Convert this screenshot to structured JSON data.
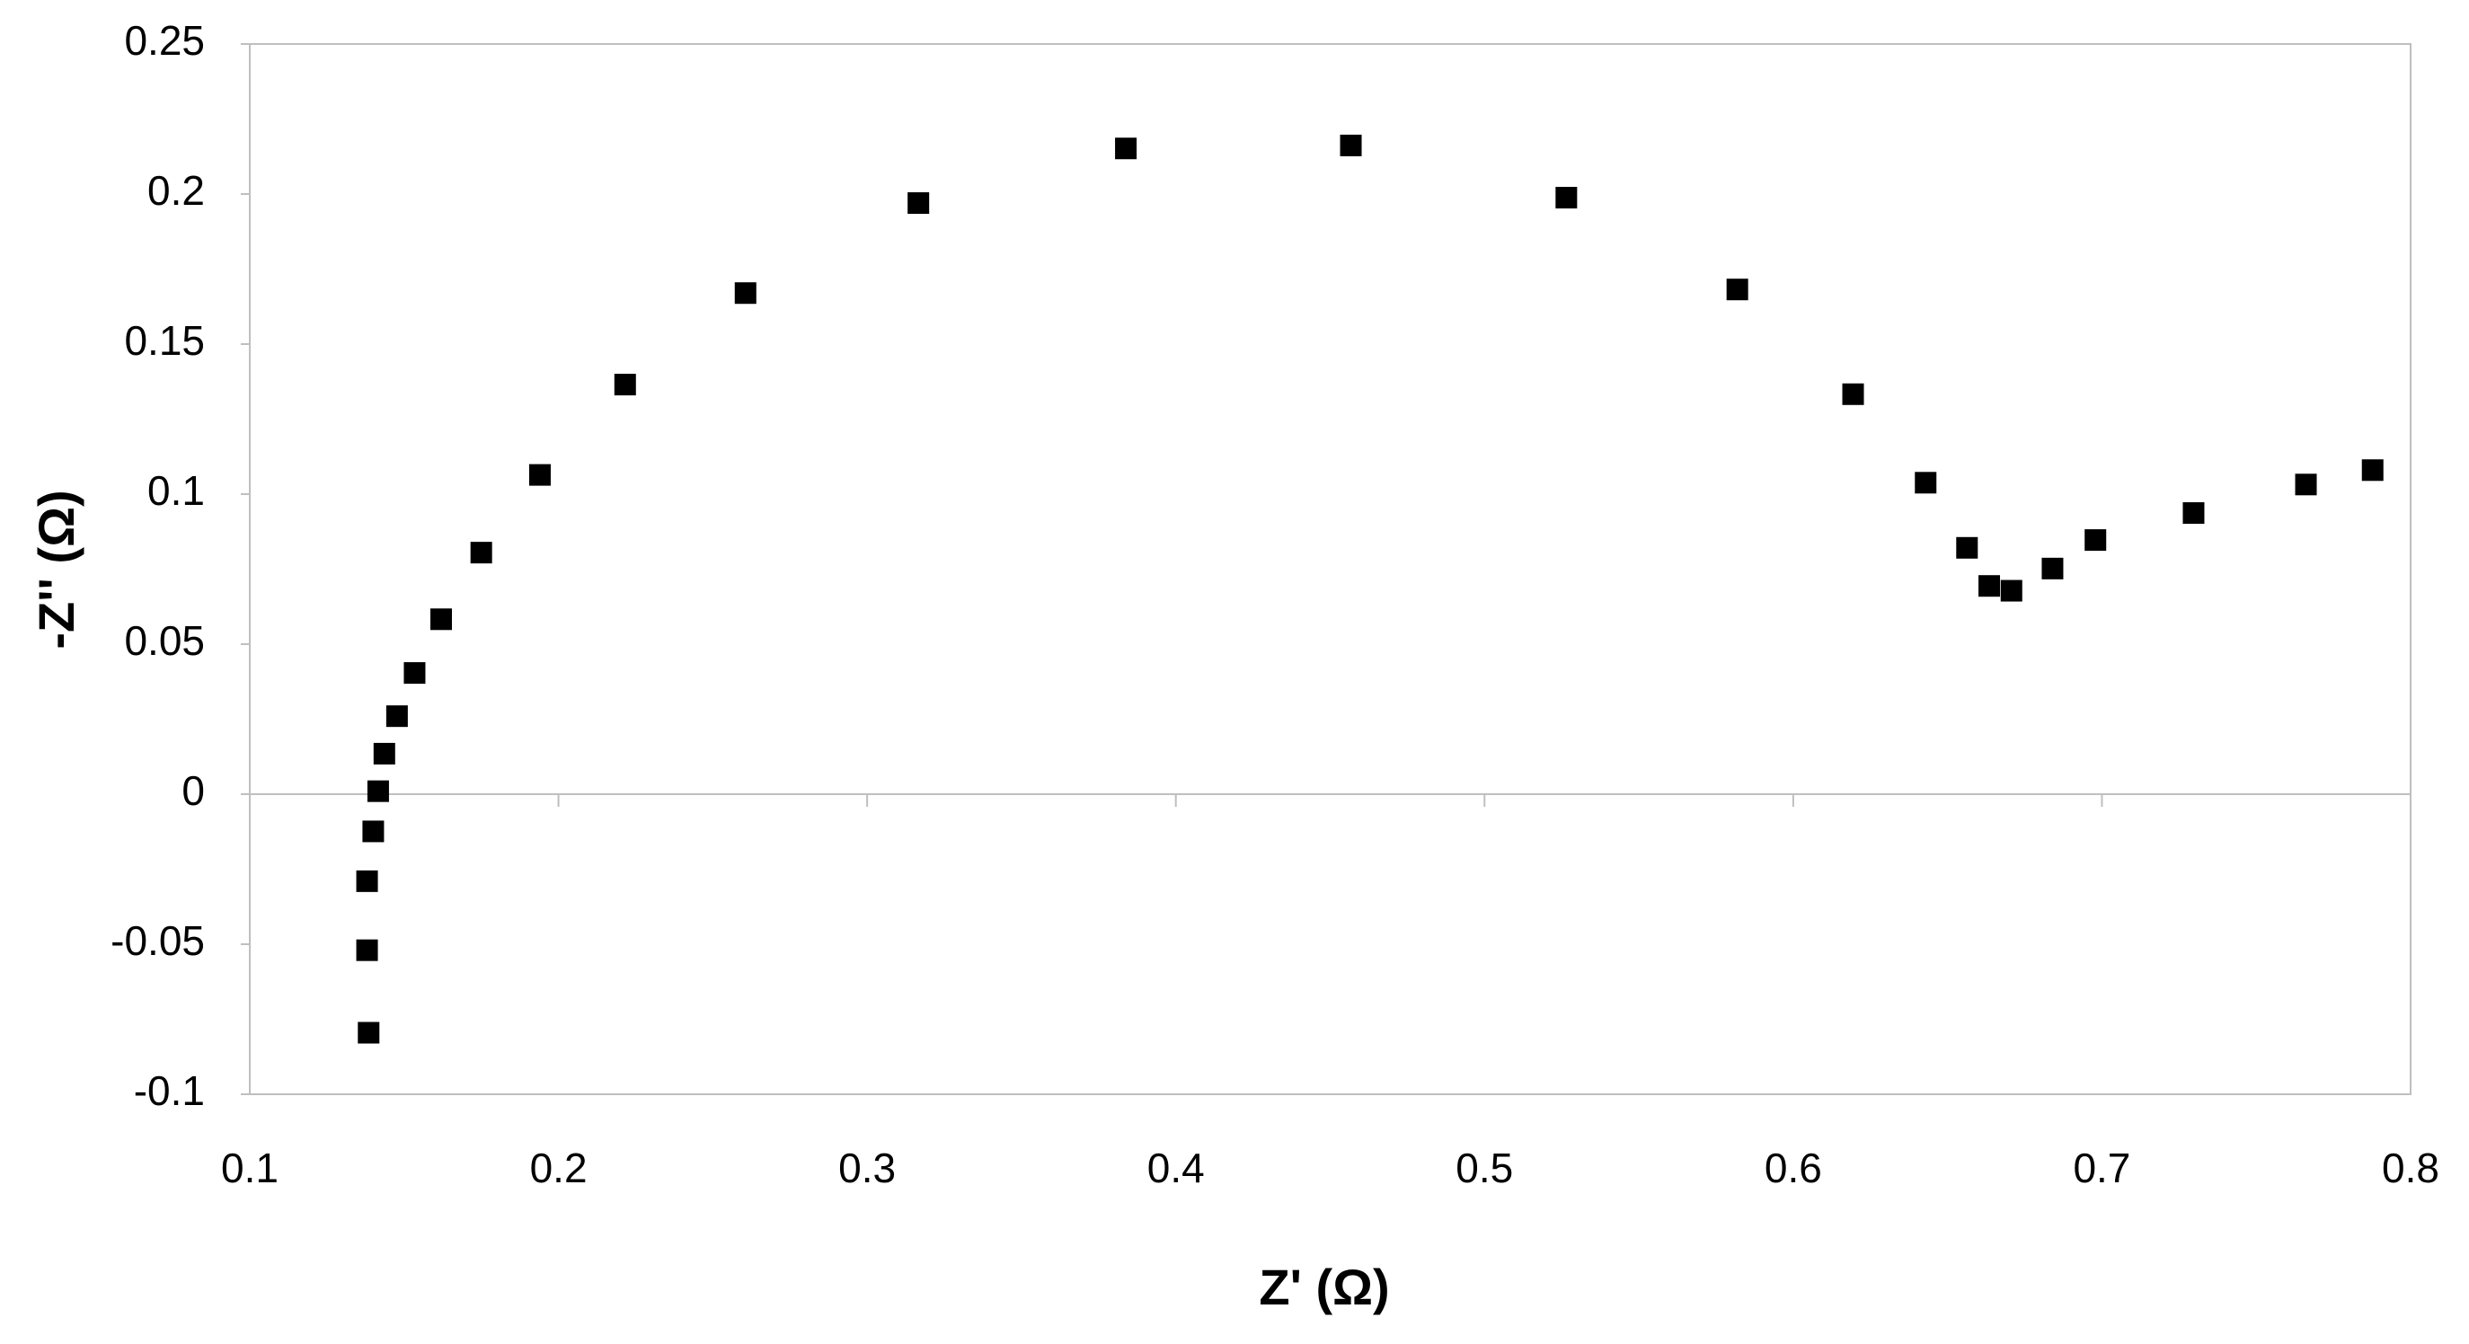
{
  "chart_data": {
    "type": "scatter",
    "x_label": "Z' (Ω)",
    "y_label": "-Z'' (Ω)",
    "x": [
      0.1385,
      0.138,
      0.138,
      0.14,
      0.1416,
      0.1436,
      0.1477,
      0.1534,
      0.162,
      0.175,
      0.194,
      0.2216,
      0.2606,
      0.3166,
      0.3838,
      0.4567,
      0.5265,
      0.5819,
      0.6194,
      0.6429,
      0.6563,
      0.6635,
      0.6707,
      0.684,
      0.6979,
      0.7297,
      0.7661,
      0.7877
    ],
    "values": [
      -0.0795,
      -0.052,
      -0.029,
      -0.0124,
      0.001,
      0.0135,
      0.026,
      0.0404,
      0.0583,
      0.0805,
      0.1064,
      0.1365,
      0.167,
      0.197,
      0.2152,
      0.2162,
      0.1988,
      0.1682,
      0.1333,
      0.1038,
      0.0821,
      0.0694,
      0.0678,
      0.0752,
      0.0847,
      0.0937,
      0.1032,
      0.108
    ],
    "color": "#000000",
    "xlim": [
      0.1,
      0.8
    ],
    "xticks": [
      0.1,
      0.2,
      0.3,
      0.4,
      0.5,
      0.6,
      0.7,
      0.8
    ],
    "ylim": [
      -0.1,
      0.25
    ],
    "yticks": [
      -0.1,
      -0.05,
      0,
      0.05,
      0.1,
      0.15,
      0.2,
      0.25
    ],
    "grid": false
  }
}
